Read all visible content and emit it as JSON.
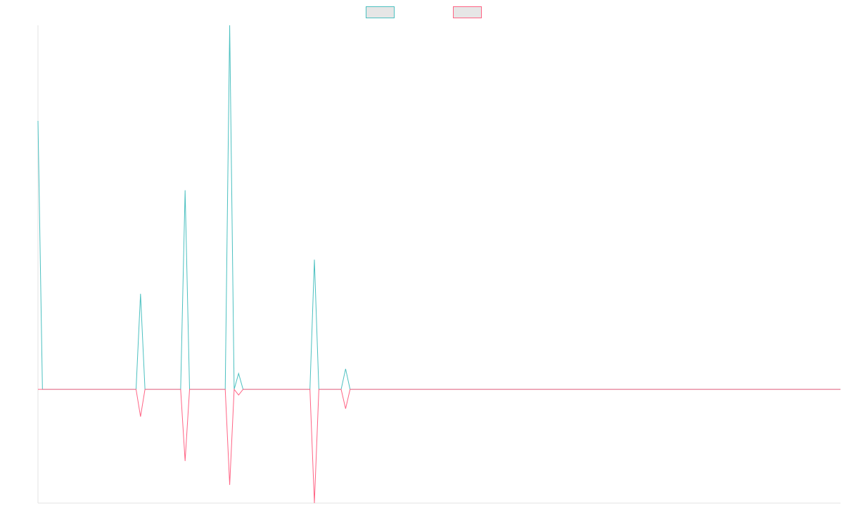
{
  "chart_data": {
    "type": "line",
    "title": "",
    "xlabel": "",
    "ylabel": "",
    "grid": false,
    "legend_position": "top-center",
    "x": [
      0,
      1,
      22,
      23,
      24,
      32,
      33,
      34,
      42,
      43,
      44,
      45,
      46,
      61,
      62,
      63,
      68,
      69,
      70,
      180
    ],
    "ylim": [
      -1.0,
      3.2
    ],
    "series": [
      {
        "color": "#4bc0c0",
        "fill": "#e6e6e6",
        "values": [
          2.36,
          0,
          0,
          0.84,
          0,
          0,
          1.75,
          0,
          0,
          3.2,
          0,
          0.14,
          0,
          0,
          1.14,
          0,
          0,
          0.18,
          0,
          0
        ]
      },
      {
        "color": "#ff6384",
        "fill": "#e6e6e6",
        "values": [
          0,
          0,
          0,
          -0.24,
          0,
          0,
          -0.63,
          0,
          0,
          -0.84,
          0,
          -0.05,
          0,
          0,
          -1.0,
          0,
          0,
          -0.17,
          0,
          0
        ]
      }
    ]
  }
}
